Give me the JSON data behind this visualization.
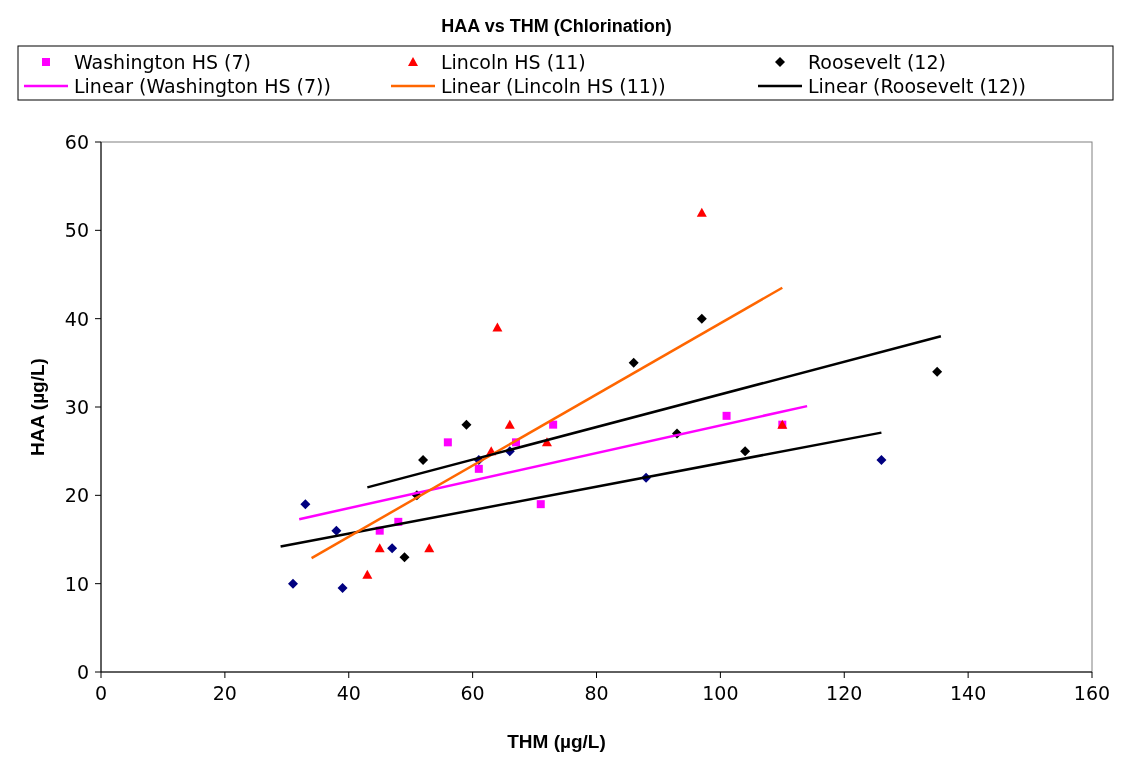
{
  "chart_data": {
    "type": "scatter",
    "title": "HAA vs THM (Chlorination)",
    "xlabel": "THM (µg/L)",
    "ylabel": "HAA (µg/L)",
    "xlim": [
      0,
      160
    ],
    "xticks": [
      0,
      20,
      40,
      60,
      80,
      100,
      120,
      140,
      160
    ],
    "ylim": [
      0,
      60
    ],
    "yticks": [
      0,
      10,
      20,
      30,
      40,
      50,
      60
    ],
    "grid": false,
    "legend": "top",
    "series": [
      {
        "marker": "diamond",
        "color": "#000080",
        "x": [
          31,
          33,
          38,
          39,
          47,
          61,
          66,
          88,
          126
        ],
        "values": [
          10,
          19,
          16,
          9.5,
          14,
          24,
          25,
          22,
          24
        ]
      },
      {
        "name": "Washington HS (7)",
        "marker": "square",
        "color": "#ff00ff",
        "x": [
          45,
          48,
          56,
          61,
          67,
          71,
          73,
          101,
          110
        ],
        "values": [
          16,
          17,
          26,
          23,
          26,
          19,
          28,
          29,
          28
        ]
      },
      {
        "name": "Lincoln HS (11)",
        "marker": "triangle",
        "color": "#ff0000",
        "x": [
          43,
          45,
          53,
          63,
          64,
          66,
          72,
          97,
          110
        ],
        "values": [
          11,
          14,
          14,
          25,
          39,
          28,
          26,
          52,
          28
        ]
      },
      {
        "name": "Roosevelt (12)",
        "marker": "diamond",
        "color": "#000000",
        "x": [
          49,
          51,
          52,
          59,
          86,
          93,
          97,
          104,
          135
        ],
        "values": [
          13,
          20,
          24,
          28,
          35,
          27,
          40,
          25,
          34
        ]
      },
      {
        "type": "line",
        "color": "#000000",
        "x": [
          29,
          126
        ],
        "values": [
          14.2,
          27.1
        ]
      },
      {
        "type": "line",
        "name": "Linear (Washington HS (7))",
        "color": "#ff00ff",
        "x": [
          32,
          114
        ],
        "values": [
          17.3,
          30.1
        ]
      },
      {
        "type": "line",
        "name": "Linear (Lincoln HS (11))",
        "color": "#ff6600",
        "x": [
          34,
          110
        ],
        "values": [
          12.9,
          43.5
        ]
      },
      {
        "type": "line",
        "name": "Linear (Roosevelt (12))",
        "color": "#000000",
        "x": [
          43,
          135.6
        ],
        "values": [
          20.9,
          38
        ]
      }
    ]
  }
}
